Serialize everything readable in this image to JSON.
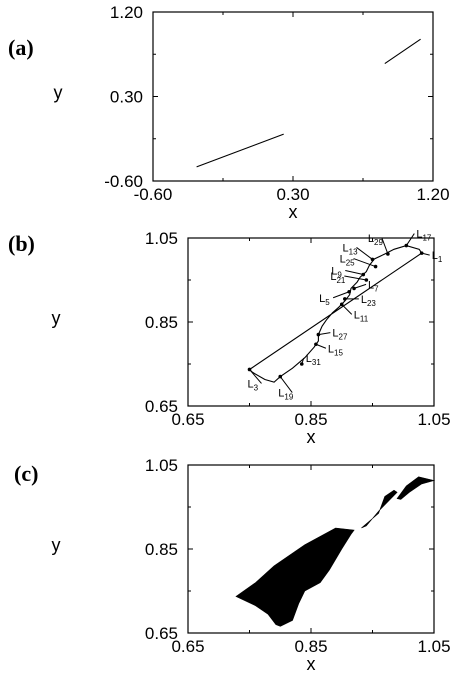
{
  "chart_data": [
    {
      "type": "line",
      "panel_label": "(a)",
      "xlabel": "x",
      "ylabel": "y",
      "xlim": [
        -0.6,
        1.2
      ],
      "ylim": [
        -0.6,
        1.2
      ],
      "x_ticks": [
        "-0.60",
        "0.30",
        "1.20"
      ],
      "y_ticks": [
        "-0.60",
        "0.30",
        "1.20"
      ],
      "series": [
        {
          "points": [
            [
              -0.32,
              -0.45
            ],
            [
              0.24,
              -0.1
            ]
          ]
        },
        {
          "points": [
            [
              0.89,
              0.65
            ],
            [
              1.12,
              0.91
            ]
          ]
        }
      ]
    },
    {
      "type": "line",
      "panel_label": "(b)",
      "xlabel": "x",
      "ylabel": "y",
      "xlim": [
        0.65,
        1.05
      ],
      "ylim": [
        0.65,
        1.05
      ],
      "x_ticks": [
        "0.65",
        "0.85",
        "1.05"
      ],
      "y_ticks": [
        "0.65",
        "0.85",
        "1.05"
      ],
      "series": [
        {
          "points": [
            [
              0.75,
              0.737
            ],
            [
              1.03,
              1.014
            ],
            [
              1.026,
              1.023
            ],
            [
              1.005,
              1.032
            ],
            [
              0.985,
              1.023
            ],
            [
              0.97,
              1.012
            ],
            [
              0.953,
              1.0
            ],
            [
              0.945,
              0.985
            ],
            [
              0.94,
              0.97
            ],
            [
              0.93,
              0.957
            ],
            [
              0.925,
              0.945
            ],
            [
              0.915,
              0.93
            ],
            [
              0.913,
              0.915
            ],
            [
              0.905,
              0.9
            ],
            [
              0.895,
              0.885
            ],
            [
              0.885,
              0.872
            ],
            [
              0.875,
              0.855
            ],
            [
              0.868,
              0.84
            ],
            [
              0.862,
              0.82
            ],
            [
              0.862,
              0.805
            ],
            [
              0.855,
              0.79
            ],
            [
              0.84,
              0.765
            ],
            [
              0.82,
              0.74
            ],
            [
              0.8,
              0.72
            ],
            [
              0.79,
              0.707
            ],
            [
              0.775,
              0.713
            ],
            [
              0.755,
              0.73
            ],
            [
              0.75,
              0.737
            ]
          ]
        }
      ],
      "annotations": [
        {
          "main": "L",
          "sub": "1",
          "point": [
            1.03,
            1.014
          ]
        },
        {
          "main": "L",
          "sub": "3",
          "point": [
            0.75,
            0.737
          ]
        },
        {
          "main": "L",
          "sub": "5",
          "point": [
            0.912,
            0.922
          ]
        },
        {
          "main": "L",
          "sub": "7",
          "point": [
            0.92,
            0.93
          ]
        },
        {
          "main": "L",
          "sub": "9",
          "point": [
            0.935,
            0.963
          ]
        },
        {
          "main": "L",
          "sub": "11",
          "point": [
            0.9,
            0.892
          ]
        },
        {
          "main": "L",
          "sub": "13",
          "point": [
            0.95,
            0.999
          ]
        },
        {
          "main": "L",
          "sub": "15",
          "point": [
            0.858,
            0.797
          ]
        },
        {
          "main": "L",
          "sub": "17",
          "point": [
            1.005,
            1.032
          ]
        },
        {
          "main": "L",
          "sub": "19",
          "point": [
            0.8,
            0.72
          ]
        },
        {
          "main": "L",
          "sub": "21",
          "point": [
            0.94,
            0.95
          ]
        },
        {
          "main": "L",
          "sub": "23",
          "point": [
            0.905,
            0.905
          ]
        },
        {
          "main": "L",
          "sub": "25",
          "point": [
            0.955,
            0.982
          ]
        },
        {
          "main": "L",
          "sub": "27",
          "point": [
            0.862,
            0.82
          ]
        },
        {
          "main": "L",
          "sub": "29",
          "point": [
            0.975,
            1.012
          ]
        },
        {
          "main": "L",
          "sub": "31",
          "point": [
            0.835,
            0.75
          ]
        }
      ]
    },
    {
      "type": "scatter",
      "panel_label": "(c)",
      "xlabel": "x",
      "ylabel": "y",
      "xlim": [
        0.65,
        1.05
      ],
      "ylim": [
        0.65,
        1.05
      ],
      "x_ticks": [
        "0.65",
        "0.85",
        "1.05"
      ],
      "y_ticks": [
        "0.65",
        "0.85",
        "1.05"
      ],
      "regions": [
        {
          "points": [
            [
              0.8,
              0.666
            ],
            [
              0.82,
              0.68
            ],
            [
              0.83,
              0.72
            ],
            [
              0.84,
              0.75
            ],
            [
              0.865,
              0.77
            ],
            [
              0.88,
              0.8
            ],
            [
              0.9,
              0.85
            ],
            [
              0.915,
              0.885
            ],
            [
              0.92,
              0.895
            ],
            [
              0.89,
              0.9
            ],
            [
              0.84,
              0.86
            ],
            [
              0.79,
              0.81
            ],
            [
              0.76,
              0.77
            ],
            [
              0.728,
              0.737
            ],
            [
              0.76,
              0.715
            ],
            [
              0.78,
              0.695
            ],
            [
              0.793,
              0.67
            ]
          ]
        },
        {
          "points": [
            [
              0.932,
              0.9
            ],
            [
              0.96,
              0.935
            ],
            [
              0.97,
              0.975
            ],
            [
              0.985,
              0.99
            ],
            [
              0.99,
              0.985
            ],
            [
              0.96,
              0.94
            ],
            [
              0.94,
              0.905
            ]
          ]
        },
        {
          "points": [
            [
              0.99,
              0.97
            ],
            [
              1.005,
              1.0
            ],
            [
              1.025,
              1.022
            ],
            [
              1.05,
              1.013
            ],
            [
              1.03,
              1.005
            ],
            [
              1.01,
              0.985
            ],
            [
              0.996,
              0.968
            ]
          ]
        }
      ]
    }
  ]
}
